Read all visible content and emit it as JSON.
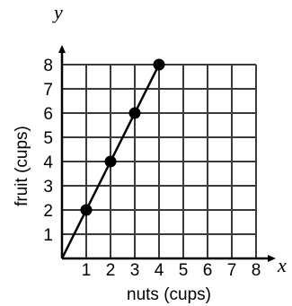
{
  "chart_data": {
    "type": "line",
    "xlabel": "nuts (cups)",
    "ylabel": "fruit (cups)",
    "x_axis_letter": "x",
    "y_axis_letter": "y",
    "xlim": [
      0,
      8
    ],
    "ylim": [
      0,
      8
    ],
    "x_ticks": [
      1,
      2,
      3,
      4,
      5,
      6,
      7,
      8
    ],
    "y_ticks": [
      1,
      2,
      3,
      4,
      5,
      6,
      7,
      8
    ],
    "grid": true,
    "line": {
      "x": [
        0,
        4
      ],
      "y": [
        0,
        8
      ]
    },
    "points": [
      {
        "x": 1,
        "y": 2
      },
      {
        "x": 2,
        "y": 4
      },
      {
        "x": 3,
        "y": 6
      },
      {
        "x": 4,
        "y": 8
      }
    ]
  }
}
